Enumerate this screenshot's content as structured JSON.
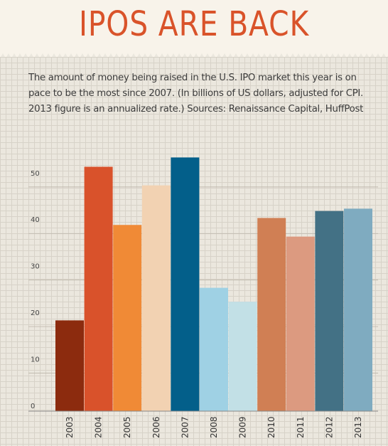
{
  "header": {
    "title": "IPOS ARE BACK",
    "subtitle": "The amount of money being raised in the U.S. IPO market this year is on pace to be the most since 2007. (In billions of US dollars, adjusted for CPI. 2013 figure is an annualized rate.) Sources: Renaissance Capital, HuffPost"
  },
  "colors": {
    "title": "#d9532a",
    "background": "#f8f3ea",
    "grid_panel": "#ebe7de"
  },
  "chart_data": {
    "type": "bar",
    "categories": [
      "2003",
      "2004",
      "2005",
      "2006",
      "2007",
      "2008",
      "2009",
      "2010",
      "2011",
      "2012",
      "2013"
    ],
    "values": [
      19.5,
      52.5,
      40,
      48.5,
      54.5,
      26.5,
      23.5,
      41.5,
      37.5,
      43,
      43.5
    ],
    "colors": [
      "#8c2b0e",
      "#d9522b",
      "#f08a36",
      "#f2d2b2",
      "#035f8a",
      "#9fd1e4",
      "#c2e0e6",
      "#d07f54",
      "#dc9a80",
      "#437185",
      "#7fabc0"
    ],
    "yticks": [
      0,
      10,
      20,
      30,
      40,
      50
    ],
    "ylim": [
      0,
      57
    ],
    "grid": true
  }
}
